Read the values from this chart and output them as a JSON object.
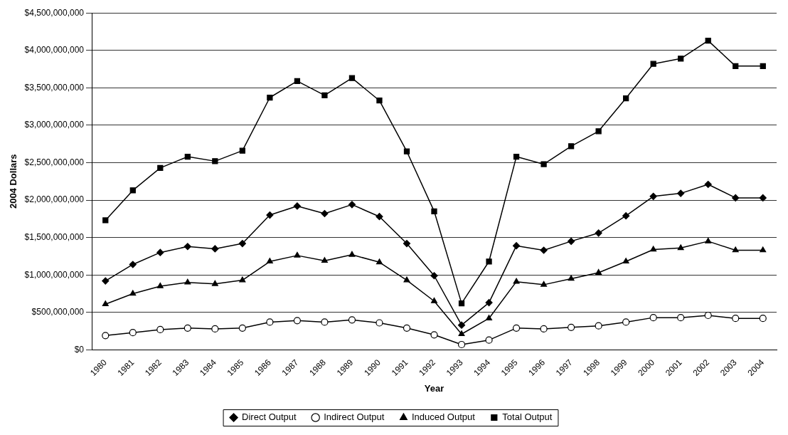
{
  "chart_data": {
    "type": "line",
    "xlabel": "Year",
    "ylabel": "2004 Dollars",
    "categories": [
      "1980",
      "1981",
      "1982",
      "1983",
      "1984",
      "1985",
      "1986",
      "1987",
      "1988",
      "1989",
      "1990",
      "1991",
      "1992",
      "1993",
      "1994",
      "1995",
      "1996",
      "1997",
      "1998",
      "1999",
      "2000",
      "2001",
      "2002",
      "2003",
      "2004"
    ],
    "series": [
      {
        "name": "Direct Output",
        "color": "#000000",
        "marker": "diamond",
        "values": [
          920000000,
          1140000000,
          1300000000,
          1380000000,
          1350000000,
          1420000000,
          1800000000,
          1920000000,
          1820000000,
          1940000000,
          1780000000,
          1420000000,
          990000000,
          330000000,
          630000000,
          1390000000,
          1330000000,
          1450000000,
          1560000000,
          1790000000,
          2050000000,
          2090000000,
          2210000000,
          2030000000,
          2030000000
        ]
      },
      {
        "name": "Indirect Output",
        "color": "#000000",
        "marker": "circle",
        "values": [
          190000000,
          230000000,
          270000000,
          290000000,
          280000000,
          290000000,
          370000000,
          390000000,
          370000000,
          400000000,
          360000000,
          290000000,
          200000000,
          70000000,
          130000000,
          290000000,
          280000000,
          300000000,
          320000000,
          370000000,
          430000000,
          430000000,
          460000000,
          420000000,
          420000000
        ]
      },
      {
        "name": "Induced Output",
        "color": "#000000",
        "marker": "triangle",
        "values": [
          610000000,
          750000000,
          850000000,
          900000000,
          880000000,
          930000000,
          1180000000,
          1260000000,
          1190000000,
          1270000000,
          1170000000,
          930000000,
          650000000,
          210000000,
          420000000,
          910000000,
          870000000,
          950000000,
          1030000000,
          1180000000,
          1340000000,
          1360000000,
          1450000000,
          1330000000,
          1330000000
        ]
      },
      {
        "name": "Total Output",
        "color": "#000000",
        "marker": "square",
        "values": [
          1730000000,
          2130000000,
          2430000000,
          2580000000,
          2520000000,
          2660000000,
          3370000000,
          3590000000,
          3400000000,
          3630000000,
          3330000000,
          2650000000,
          1850000000,
          620000000,
          1180000000,
          2580000000,
          2480000000,
          2720000000,
          2920000000,
          3360000000,
          3820000000,
          3890000000,
          4130000000,
          3790000000,
          3790000000
        ]
      }
    ],
    "ylim": [
      0,
      4500000000
    ],
    "yticks": [
      {
        "value": 0,
        "label": "$0"
      },
      {
        "value": 500000000,
        "label": "$500,000,000"
      },
      {
        "value": 1000000000,
        "label": "$1,000,000,000"
      },
      {
        "value": 1500000000,
        "label": "$1,500,000,000"
      },
      {
        "value": 2000000000,
        "label": "$2,000,000,000"
      },
      {
        "value": 2500000000,
        "label": "$2,500,000,000"
      },
      {
        "value": 3000000000,
        "label": "$3,000,000,000"
      },
      {
        "value": 3500000000,
        "label": "$3,500,000,000"
      },
      {
        "value": 4000000000,
        "label": "$4,000,000,000"
      },
      {
        "value": 4500000000,
        "label": "$4,500,000,000"
      }
    ],
    "grid": "y",
    "legend": "bottom",
    "line_style": "solid"
  }
}
